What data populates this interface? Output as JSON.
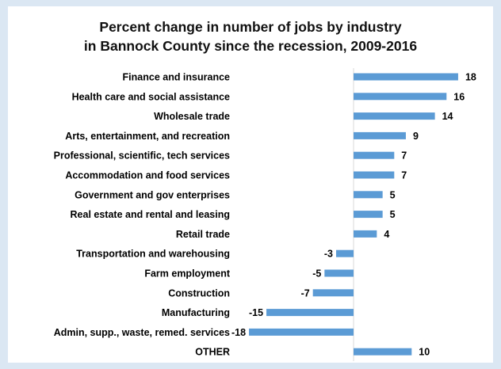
{
  "chart_data": {
    "type": "bar",
    "orientation": "horizontal",
    "title_line1": "Percent change in number of jobs by industry",
    "title_line2": "in Bannock County since the recession, 2009-2016",
    "xlabel": "",
    "ylabel": "",
    "xlim": [
      -18,
      18
    ],
    "grid": false,
    "legend": "none",
    "bar_color": "#5b9bd5",
    "categories": [
      "Finance and insurance",
      "Health care and social assistance",
      "Wholesale trade",
      "Arts, entertainment, and recreation",
      "Professional, scientific, tech services",
      "Accommodation and food services",
      "Government and gov enterprises",
      "Real estate and rental and leasing",
      "Retail trade",
      "Transportation and warehousing",
      "Farm employment",
      "Construction",
      "Manufacturing",
      "Admin, supp., waste, remed. services",
      "OTHER"
    ],
    "values": [
      18,
      16,
      14,
      9,
      7,
      7,
      5,
      5,
      4,
      -3,
      -5,
      -7,
      -15,
      -18,
      10
    ]
  }
}
